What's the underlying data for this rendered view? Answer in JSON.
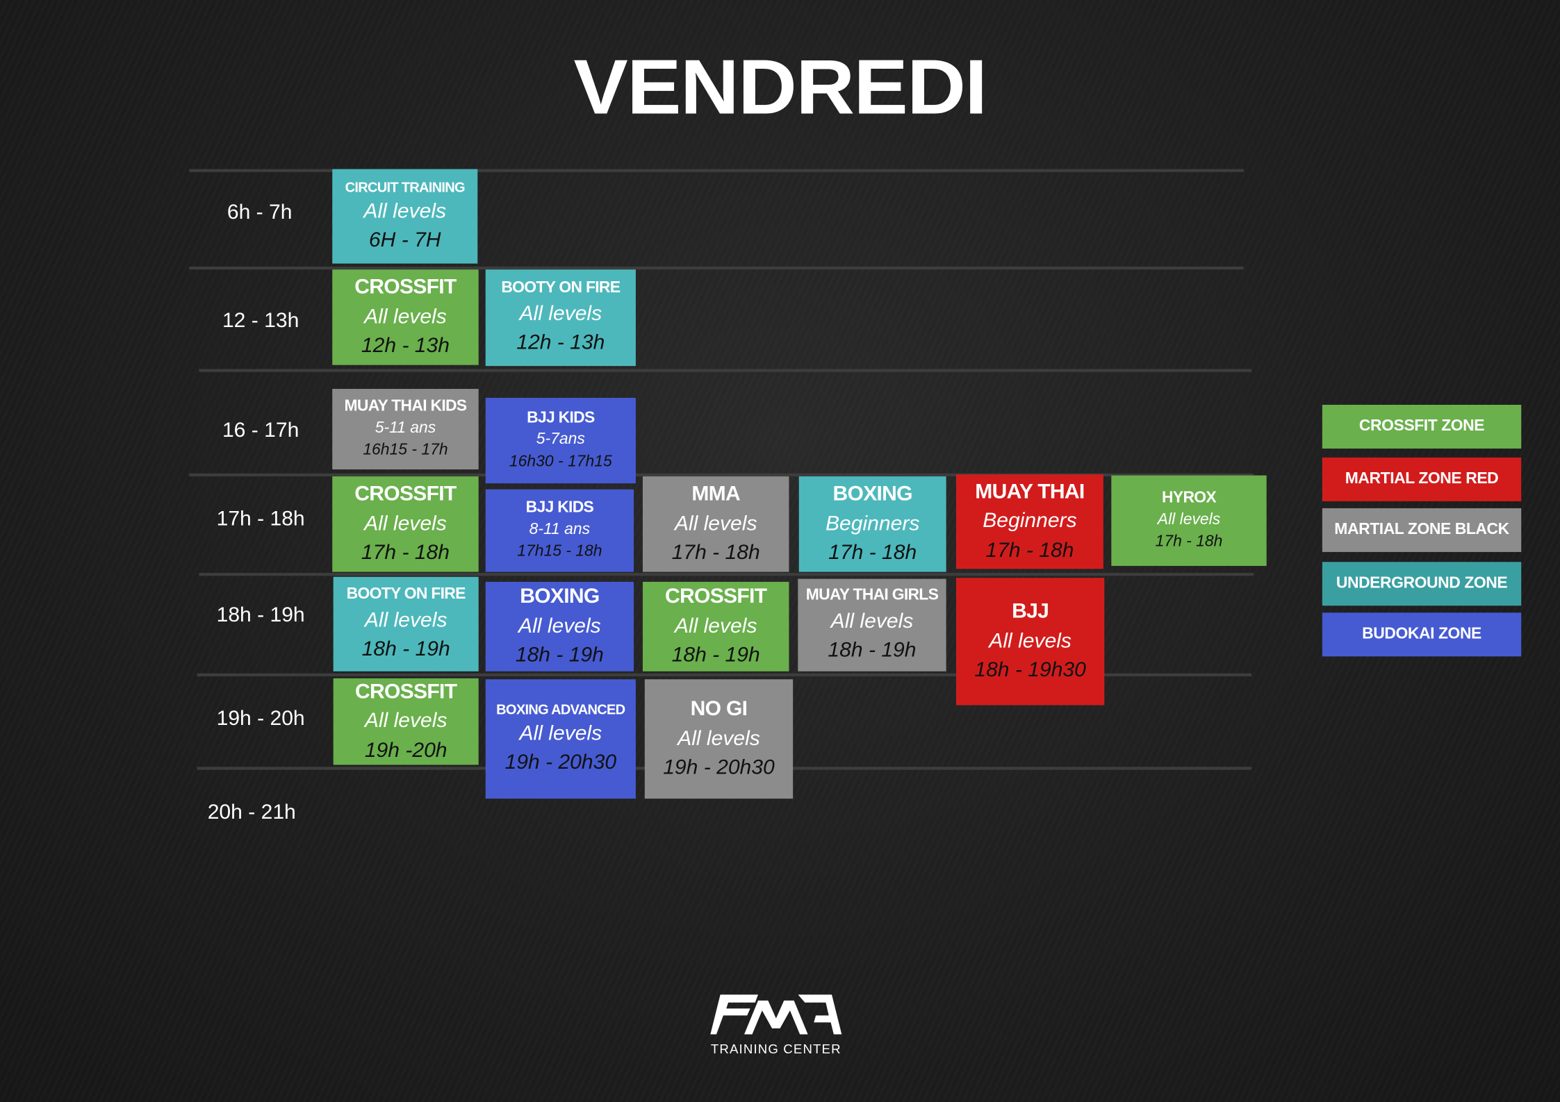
{
  "title": "VENDREDI",
  "colors": {
    "green": "#6ab04c",
    "cyan": "#4db8bb",
    "gray": "#8c8c8c",
    "blue": "#465bd1",
    "red": "#d21c1c",
    "teal": "#3a9fa1"
  },
  "time_slots": [
    "6h - 7h",
    "12 - 13h",
    "16 - 17h",
    "17h - 18h",
    "18h - 19h",
    "19h - 20h",
    "20h - 21h"
  ],
  "classes": [
    {
      "name": "CIRCUIT TRAINING",
      "level": "All levels",
      "time": "6H - 7H",
      "color": "cyan"
    },
    {
      "name": "CROSSFIT",
      "level": "All levels",
      "time": "12h - 13h",
      "color": "green"
    },
    {
      "name": "BOOTY ON FIRE",
      "level": "All levels",
      "time": "12h - 13h",
      "color": "cyan"
    },
    {
      "name": "MUAY THAI KIDS",
      "level": "5-11 ans",
      "time": "16h15 - 17h",
      "color": "gray"
    },
    {
      "name": "BJJ KIDS",
      "level": "5-7ans",
      "time": "16h30 - 17h15",
      "color": "blue"
    },
    {
      "name": "CROSSFIT",
      "level": "All levels",
      "time": "17h - 18h",
      "color": "green"
    },
    {
      "name": "BJJ KIDS",
      "level": "8-11 ans",
      "time": "17h15 - 18h",
      "color": "blue"
    },
    {
      "name": "MMA",
      "level": "All levels",
      "time": "17h - 18h",
      "color": "gray"
    },
    {
      "name": "BOXING",
      "level": "Beginners",
      "time": "17h - 18h",
      "color": "cyan"
    },
    {
      "name": "MUAY THAI",
      "level": "Beginners",
      "time": "17h - 18h",
      "color": "red"
    },
    {
      "name": "HYROX",
      "level": "All levels",
      "time": "17h - 18h",
      "color": "green"
    },
    {
      "name": "BOOTY ON FIRE",
      "level": "All levels",
      "time": "18h - 19h",
      "color": "cyan"
    },
    {
      "name": "BOXING",
      "level": "All levels",
      "time": "18h - 19h",
      "color": "blue"
    },
    {
      "name": "CROSSFIT",
      "level": "All levels",
      "time": "18h - 19h",
      "color": "green"
    },
    {
      "name": "MUAY THAI GIRLS",
      "level": "All levels",
      "time": "18h - 19h",
      "color": "gray"
    },
    {
      "name": "BJJ",
      "level": "All levels",
      "time": "18h - 19h30",
      "color": "red"
    },
    {
      "name": "CROSSFIT",
      "level": "All levels",
      "time": "19h -20h",
      "color": "green"
    },
    {
      "name": "BOXING ADVANCED",
      "level": "All levels",
      "time": "19h - 20h30",
      "color": "blue"
    },
    {
      "name": "NO GI",
      "level": "All levels",
      "time": "19h - 20h30",
      "color": "gray"
    }
  ],
  "legend": [
    {
      "label": "CROSSFIT ZONE",
      "color": "green"
    },
    {
      "label": "MARTIAL ZONE RED",
      "color": "red"
    },
    {
      "label": "MARTIAL ZONE BLACK",
      "color": "gray"
    },
    {
      "label": "UNDERGROUND ZONE",
      "color": "teal"
    },
    {
      "label": "BUDOKAI ZONE",
      "color": "blue"
    }
  ],
  "logo": {
    "mark": "FMA",
    "subtitle": "TRAINING CENTER"
  }
}
